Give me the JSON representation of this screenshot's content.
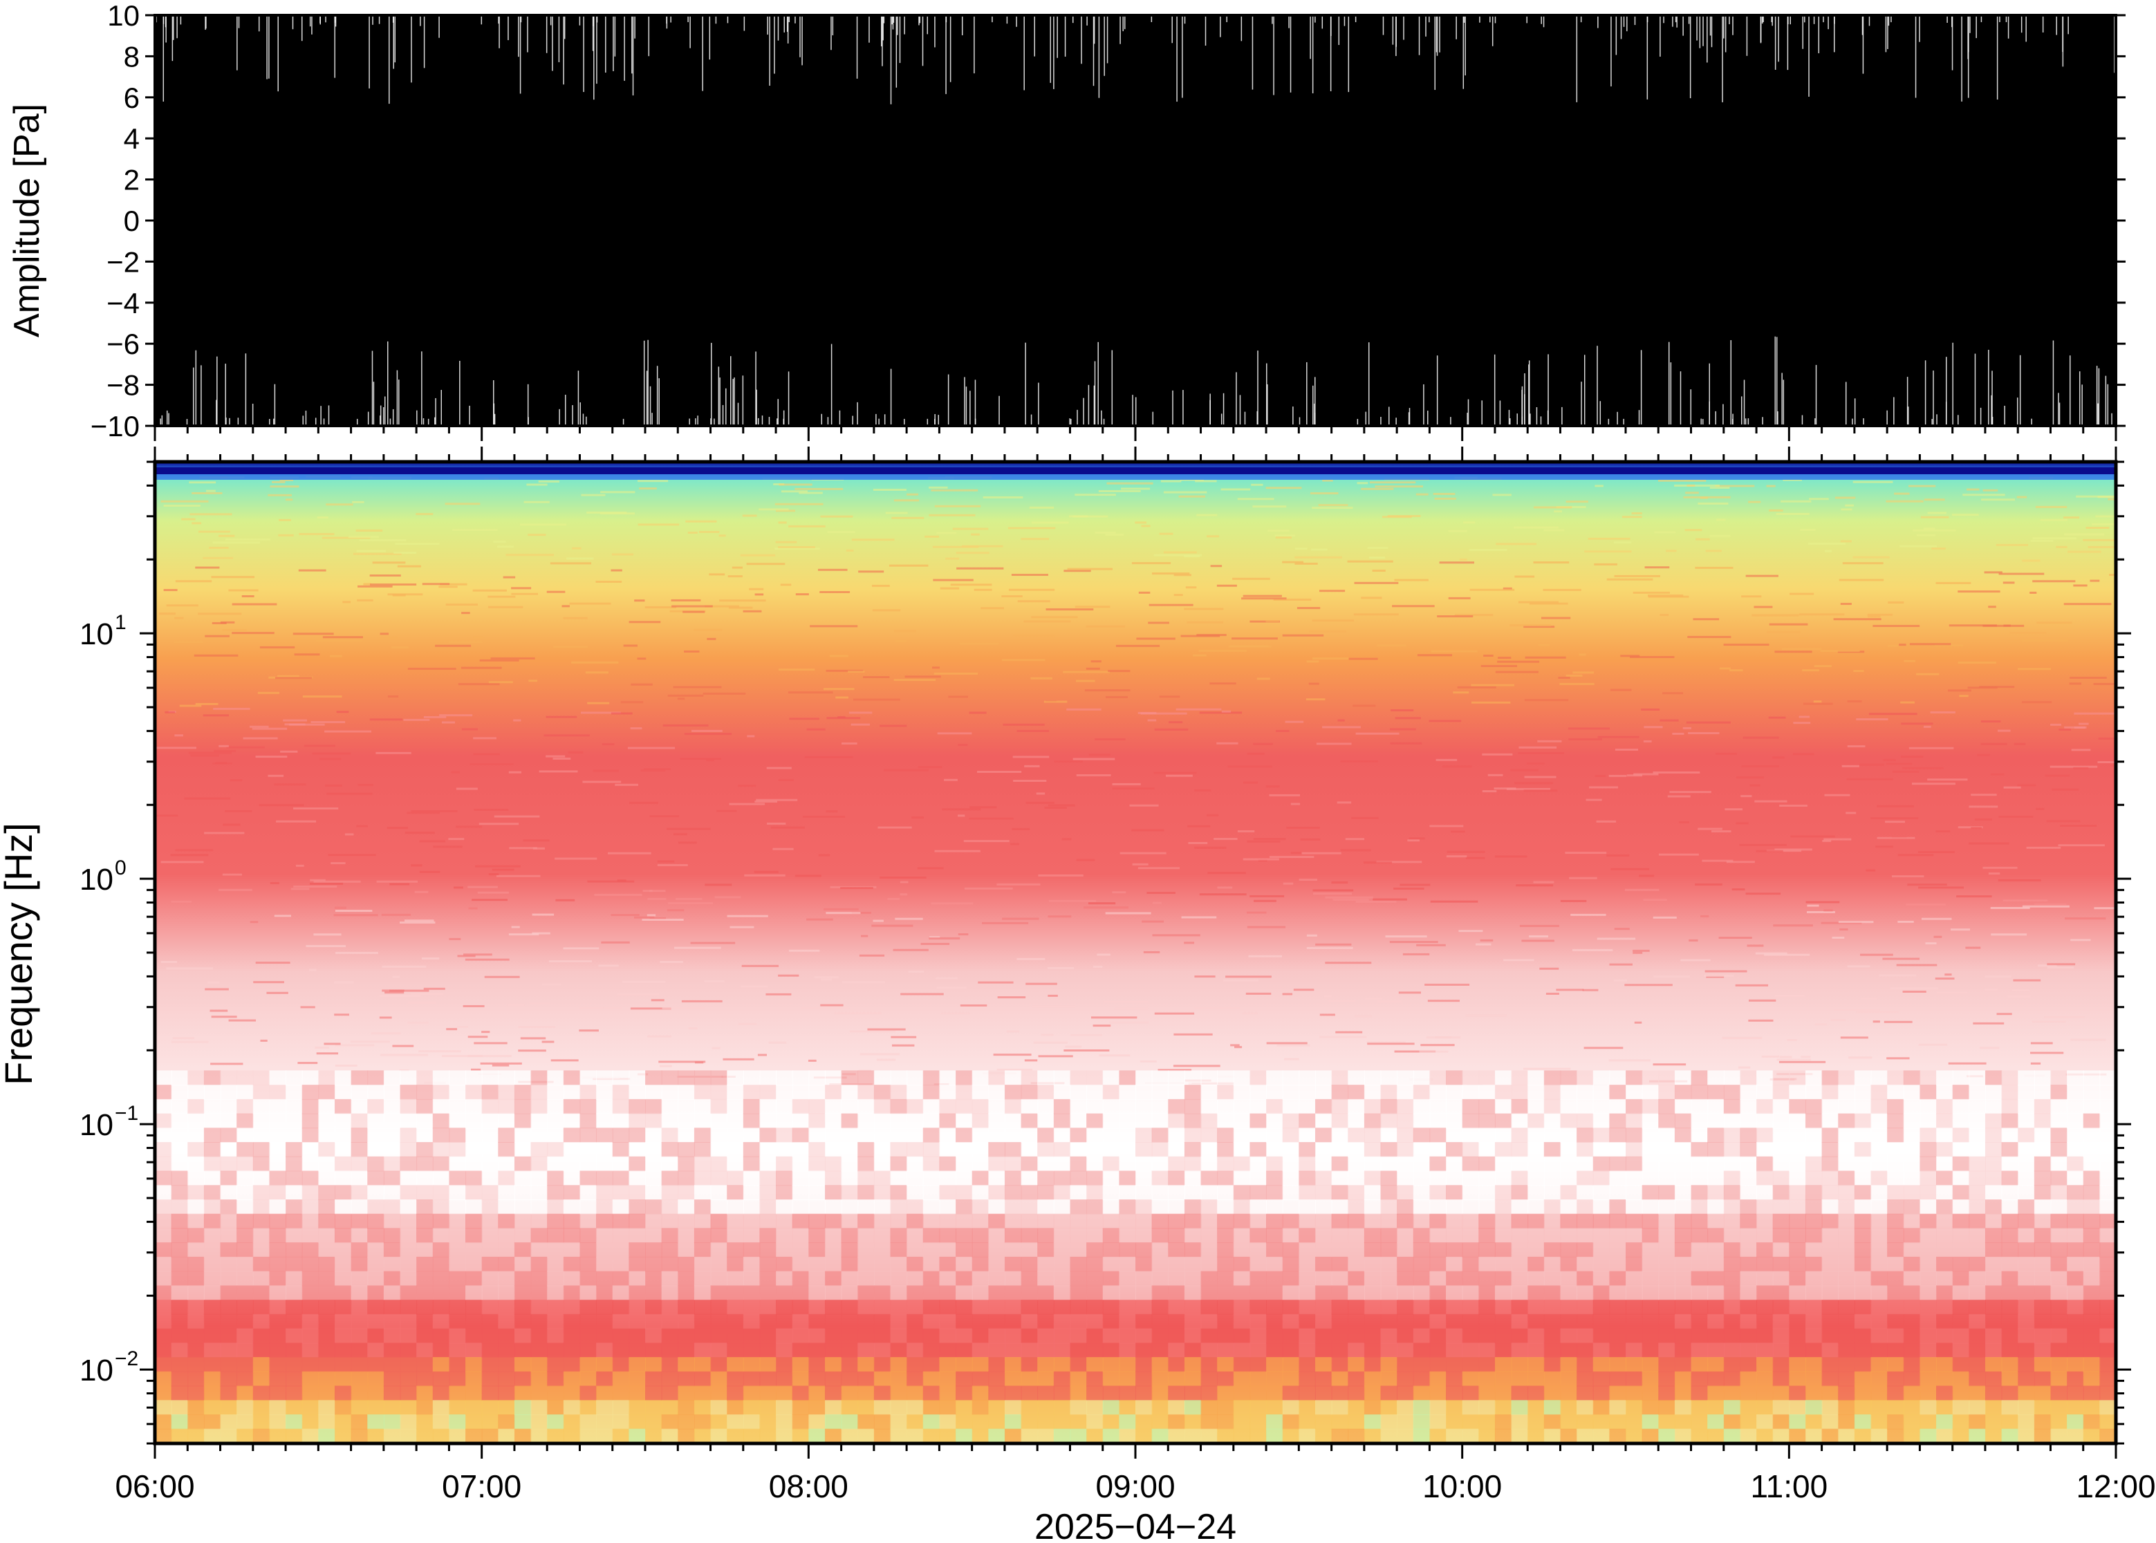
{
  "chart_data": [
    {
      "type": "line",
      "panel": "waveform",
      "ylabel": "Amplitude [Pa]",
      "ylim": [
        -10,
        10
      ],
      "yticks": [
        "10",
        "8",
        "6",
        "4",
        "2",
        "0",
        "−2",
        "−4",
        "−6",
        "−8",
        "−10"
      ],
      "ytick_values": [
        10,
        8,
        6,
        4,
        2,
        0,
        -2,
        -4,
        -6,
        -8,
        -10
      ],
      "x_range": [
        "06:00",
        "12:00"
      ],
      "description_fill": "saturated",
      "series_color": "#000000",
      "grid": false
    },
    {
      "type": "heatmap",
      "panel": "spectrogram",
      "ylabel": "Frequency [Hz]",
      "yscale": "log",
      "ylim": [
        0.005,
        50
      ],
      "yticks": [
        {
          "base": "10",
          "exp": "1",
          "value": 10
        },
        {
          "base": "10",
          "exp": "0",
          "value": 1
        },
        {
          "base": "10",
          "exp": "−1",
          "value": 0.1
        },
        {
          "base": "10",
          "exp": "−2",
          "value": 0.01
        }
      ],
      "xlabel": "2025−04−24",
      "xticks": [
        "06:00",
        "07:00",
        "08:00",
        "09:00",
        "10:00",
        "11:00",
        "12:00"
      ],
      "colormap": [
        "#0a0a8c",
        "#2a6ee0",
        "#7fe8c8",
        "#d8f08c",
        "#f8d870",
        "#f8a050",
        "#f06060",
        "#f8c8c8",
        "#ffffff"
      ],
      "bands": [
        {
          "freq_hz": 50,
          "level": "dark blue"
        },
        {
          "freq_hz": 40,
          "level": "cyan-green"
        },
        {
          "freq_hz": 20,
          "level": "yellow"
        },
        {
          "freq_hz": 10,
          "level": "orange"
        },
        {
          "freq_hz": 3,
          "level": "red"
        },
        {
          "freq_hz": 0.5,
          "level": "pink"
        },
        {
          "freq_hz": 0.08,
          "level": "white"
        },
        {
          "freq_hz": 0.02,
          "level": "red"
        },
        {
          "freq_hz": 0.007,
          "level": "yellow-orange"
        }
      ]
    }
  ]
}
